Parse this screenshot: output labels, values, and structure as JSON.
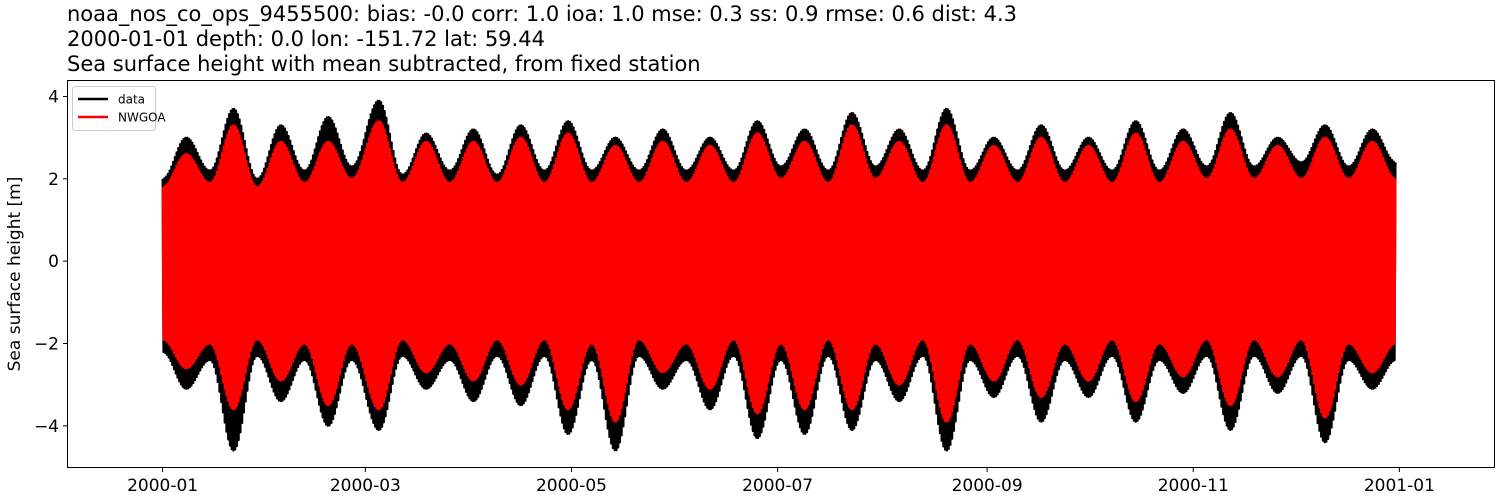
{
  "title_lines": [
    "noaa_nos_co_ops_9455500: bias: -0.0  corr: 1.0  ioa: 1.0  mse: 0.3  ss: 0.9  rmse: 0.6  dist: 4.3",
    "2000-01-01 depth: 0.0 lon: -151.72 lat: 59.44",
    "Sea surface height with mean subtracted, from fixed station"
  ],
  "chart_data": {
    "type": "line",
    "title": "noaa_nos_co_ops_9455500: bias: -0.0  corr: 1.0  ioa: 1.0  mse: 0.3  ss: 0.9  rmse: 0.6  dist: 4.3",
    "subtitle": "2000-01-01 depth: 0.0 lon: -151.72 lat: 59.44 | Sea surface height with mean subtracted, from fixed station",
    "xlabel": "",
    "ylabel": "Sea surface height [m]",
    "x_range": [
      "2000-01-01",
      "2000-12-31"
    ],
    "xlim": [
      "1999-12-04",
      "2001-01-29"
    ],
    "ylim": [
      -5.0,
      4.4
    ],
    "x_ticks": [
      "2000-01",
      "2000-03",
      "2000-05",
      "2000-07",
      "2000-09",
      "2000-11",
      "2001-01"
    ],
    "y_ticks": [
      -4,
      -2,
      0,
      2,
      4
    ],
    "y_tick_labels": [
      "−4",
      "−2",
      "0",
      "2",
      "4"
    ],
    "grid": false,
    "legend_position": "top-left",
    "series": [
      {
        "name": "data",
        "color": "#000000",
        "envelope_dates": [
          "2000-01-01",
          "2000-01-08",
          "2000-01-15",
          "2000-01-22",
          "2000-01-29",
          "2000-02-05",
          "2000-02-12",
          "2000-02-19",
          "2000-02-26",
          "2000-03-05",
          "2000-03-12",
          "2000-03-19",
          "2000-03-26",
          "2000-04-02",
          "2000-04-09",
          "2000-04-16",
          "2000-04-23",
          "2000-04-30",
          "2000-05-07",
          "2000-05-14",
          "2000-05-21",
          "2000-05-28",
          "2000-06-04",
          "2000-06-11",
          "2000-06-18",
          "2000-06-25",
          "2000-07-02",
          "2000-07-09",
          "2000-07-16",
          "2000-07-23",
          "2000-07-30",
          "2000-08-06",
          "2000-08-13",
          "2000-08-20",
          "2000-08-27",
          "2000-09-03",
          "2000-09-10",
          "2000-09-17",
          "2000-09-24",
          "2000-10-01",
          "2000-10-08",
          "2000-10-15",
          "2000-10-22",
          "2000-10-29",
          "2000-11-05",
          "2000-11-12",
          "2000-11-19",
          "2000-11-26",
          "2000-12-03",
          "2000-12-10",
          "2000-12-17",
          "2000-12-24",
          "2000-12-31"
        ],
        "upper_envelope": [
          2.0,
          3.0,
          2.2,
          3.7,
          2.0,
          3.3,
          2.2,
          3.5,
          2.3,
          3.9,
          2.1,
          3.1,
          2.2,
          3.2,
          2.1,
          3.3,
          2.2,
          3.4,
          2.2,
          3.0,
          2.2,
          3.2,
          2.2,
          3.0,
          2.2,
          3.4,
          2.3,
          3.2,
          2.2,
          3.6,
          2.3,
          3.2,
          2.2,
          3.7,
          2.2,
          3.0,
          2.2,
          3.3,
          2.2,
          3.0,
          2.2,
          3.4,
          2.2,
          3.2,
          2.3,
          3.6,
          2.3,
          3.0,
          2.4,
          3.3,
          2.3,
          3.2,
          2.4
        ],
        "lower_envelope": [
          -2.2,
          -3.1,
          -2.4,
          -4.6,
          -2.3,
          -3.4,
          -2.4,
          -4.0,
          -2.4,
          -4.1,
          -2.3,
          -3.1,
          -2.4,
          -3.4,
          -2.3,
          -3.5,
          -2.3,
          -4.2,
          -2.4,
          -4.6,
          -2.3,
          -3.1,
          -2.4,
          -3.6,
          -2.3,
          -4.3,
          -2.4,
          -4.2,
          -2.3,
          -4.1,
          -2.4,
          -3.4,
          -2.3,
          -4.6,
          -2.4,
          -3.3,
          -2.3,
          -3.9,
          -2.4,
          -3.3,
          -2.3,
          -3.9,
          -2.4,
          -3.2,
          -2.3,
          -4.1,
          -2.3,
          -3.2,
          -2.3,
          -4.4,
          -2.4,
          -3.1,
          -2.4
        ]
      },
      {
        "name": "NWGOA",
        "color": "#ff0000",
        "envelope_dates": [
          "2000-01-01",
          "2000-01-08",
          "2000-01-15",
          "2000-01-22",
          "2000-01-29",
          "2000-02-05",
          "2000-02-12",
          "2000-02-19",
          "2000-02-26",
          "2000-03-05",
          "2000-03-12",
          "2000-03-19",
          "2000-03-26",
          "2000-04-02",
          "2000-04-09",
          "2000-04-16",
          "2000-04-23",
          "2000-04-30",
          "2000-05-07",
          "2000-05-14",
          "2000-05-21",
          "2000-05-28",
          "2000-06-04",
          "2000-06-11",
          "2000-06-18",
          "2000-06-25",
          "2000-07-02",
          "2000-07-09",
          "2000-07-16",
          "2000-07-23",
          "2000-07-30",
          "2000-08-06",
          "2000-08-13",
          "2000-08-20",
          "2000-08-27",
          "2000-09-03",
          "2000-09-10",
          "2000-09-17",
          "2000-09-24",
          "2000-10-01",
          "2000-10-08",
          "2000-10-15",
          "2000-10-22",
          "2000-10-29",
          "2000-11-05",
          "2000-11-12",
          "2000-11-19",
          "2000-11-26",
          "2000-12-03",
          "2000-12-10",
          "2000-12-17",
          "2000-12-24",
          "2000-12-31"
        ],
        "upper_envelope": [
          1.8,
          2.6,
          1.9,
          3.3,
          1.8,
          2.9,
          1.9,
          2.9,
          2.0,
          3.4,
          1.9,
          2.9,
          1.9,
          2.9,
          1.9,
          3.0,
          1.9,
          3.1,
          1.9,
          2.8,
          1.9,
          2.9,
          1.9,
          2.8,
          1.9,
          3.1,
          2.0,
          2.9,
          1.9,
          3.3,
          2.0,
          2.9,
          1.9,
          3.3,
          1.9,
          2.8,
          1.9,
          3.0,
          1.9,
          2.8,
          1.9,
          3.1,
          1.9,
          2.9,
          2.0,
          3.2,
          2.0,
          2.8,
          2.0,
          3.0,
          2.0,
          2.9,
          2.0
        ],
        "lower_envelope": [
          -1.9,
          -2.6,
          -2.0,
          -3.6,
          -1.9,
          -2.9,
          -2.0,
          -3.5,
          -2.0,
          -3.6,
          -1.9,
          -2.7,
          -2.0,
          -2.9,
          -1.9,
          -3.0,
          -1.9,
          -3.6,
          -2.0,
          -3.9,
          -1.9,
          -2.7,
          -2.0,
          -3.1,
          -1.9,
          -3.7,
          -2.0,
          -3.6,
          -1.9,
          -3.6,
          -2.0,
          -3.0,
          -1.9,
          -3.9,
          -2.0,
          -2.9,
          -1.9,
          -3.3,
          -2.0,
          -2.9,
          -1.9,
          -3.4,
          -2.0,
          -2.8,
          -1.9,
          -3.5,
          -1.9,
          -2.8,
          -1.9,
          -3.8,
          -2.0,
          -2.7,
          -2.0
        ]
      }
    ]
  }
}
